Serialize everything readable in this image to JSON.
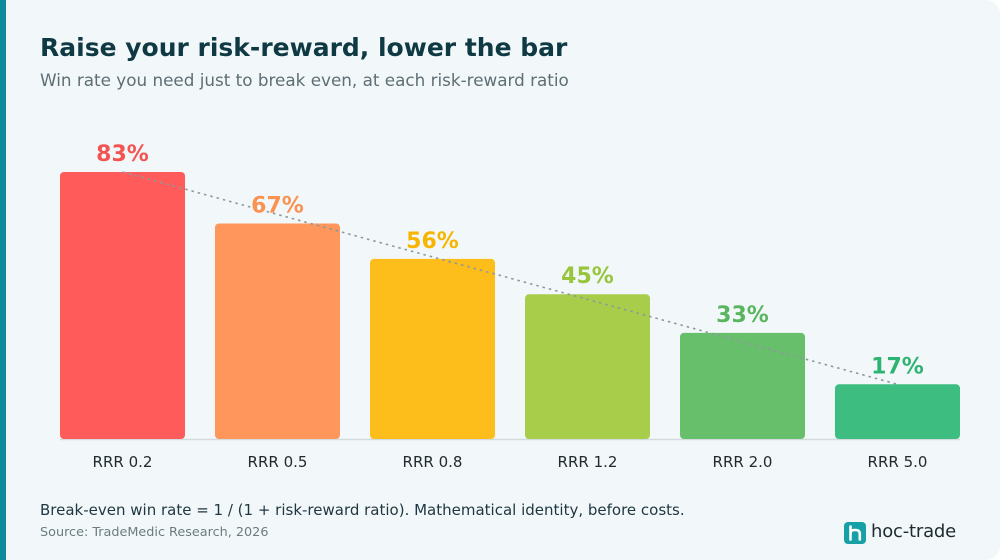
{
  "chart_data": {
    "type": "bar",
    "title": "Raise your risk-reward, lower the bar",
    "subtitle": "Win rate you need just to break even, at each risk-reward ratio",
    "categories": [
      "RRR 0.2",
      "RRR 0.5",
      "RRR 0.8",
      "RRR 1.2",
      "RRR 2.0",
      "RRR 5.0"
    ],
    "values": [
      83,
      67,
      56,
      45,
      33,
      17
    ],
    "value_labels": [
      "83%",
      "67%",
      "56%",
      "45%",
      "33%",
      "17%"
    ],
    "xlabel": "",
    "ylabel": "",
    "ylim": [
      0,
      100
    ],
    "grid": false,
    "trend_line": true,
    "bar_colors": [
      "#ff5b5b",
      "#ff965b",
      "#fdbe1c",
      "#a8cd4a",
      "#67bf6b",
      "#3dbd80"
    ],
    "label_colors": [
      "#f45353",
      "#fa9251",
      "#f7b500",
      "#97c53b",
      "#5ab55f",
      "#2fb373"
    ]
  },
  "footer": {
    "note": "Break-even win rate = 1 / (1 + risk-reward ratio). Mathematical identity, before costs.",
    "source": "Source: TradeMedic Research, 2026"
  },
  "brand": {
    "name": "hoc-trade",
    "icon": "hoc-trade-logo-icon",
    "icon_color": "#17a0a6"
  },
  "theme": {
    "accent": "#0b8b9b",
    "background": "#f2f8fa"
  }
}
